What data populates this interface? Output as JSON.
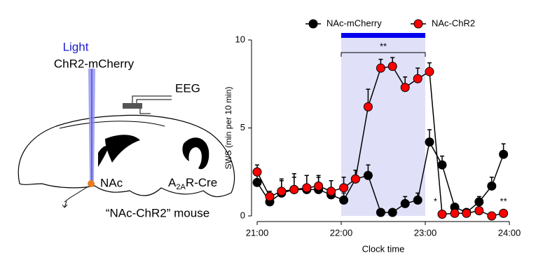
{
  "diagram": {
    "light": "Light",
    "construct": "ChR2-mCherry",
    "eeg": "EEG",
    "region": "NAc",
    "cre": [
      "A",
      "2A",
      "R-Cre"
    ],
    "mouse": "“NAc-ChR2” mouse"
  },
  "chart_data": {
    "type": "line",
    "x_label": "Clock time",
    "y_label": "SWS (min per 10 min)",
    "x": [
      21.0,
      21.15,
      21.29,
      21.44,
      21.59,
      21.73,
      21.88,
      22.03,
      22.17,
      22.32,
      22.47,
      22.61,
      22.76,
      22.91,
      23.05,
      23.2,
      23.35,
      23.49,
      23.64,
      23.79,
      23.93
    ],
    "series": [
      {
        "name": "NAc-mCherry",
        "color": "#000000",
        "values": [
          1.9,
          0.8,
          1.3,
          1.5,
          1.5,
          1.5,
          1.2,
          0.9,
          2.1,
          2.3,
          0.2,
          0.2,
          0.7,
          0.9,
          4.2,
          2.9,
          0.5,
          0.2,
          0.8,
          1.7,
          3.5
        ],
        "errors": [
          0.4,
          0.3,
          0.8,
          0.9,
          0.8,
          0.7,
          0.8,
          0.4,
          0.5,
          0.6,
          0.1,
          0.1,
          0.4,
          0.4,
          0.7,
          0.5,
          0.2,
          0.1,
          0.3,
          0.5,
          0.6
        ]
      },
      {
        "name": "NAc-ChR2",
        "color": "#ff0000",
        "values": [
          2.5,
          1.1,
          1.4,
          1.5,
          1.6,
          1.7,
          1.4,
          1.6,
          2.1,
          6.2,
          8.4,
          8.5,
          7.3,
          7.8,
          8.2,
          0.1,
          0.15,
          0.15,
          0.3,
          0.0,
          0.15
        ],
        "errors": [
          0.4,
          0.3,
          0.6,
          0.7,
          0.7,
          0.6,
          0.6,
          0.6,
          0.5,
          1.0,
          0.5,
          0.5,
          0.6,
          0.6,
          0.5,
          0.1,
          0.1,
          0.1,
          0.2,
          0.1,
          0.1
        ]
      }
    ],
    "stim_window": [
      22,
      23
    ],
    "stim_color": "#0000ee",
    "shade_color": "#e0e0f8",
    "xlim": [
      21,
      24
    ],
    "xticks": [
      {
        "value": 21,
        "label": "21:00"
      },
      {
        "value": 22,
        "label": "22:00"
      },
      {
        "value": 23,
        "label": "23:00"
      },
      {
        "value": 24,
        "label": "24:00"
      }
    ],
    "ylim": [
      0,
      10
    ],
    "yticks": [
      0,
      5,
      10
    ],
    "annotations": [
      {
        "text": "**",
        "x": 22.5,
        "y": 9.6
      },
      {
        "text": "*",
        "x": 23.12,
        "y": 0.8
      },
      {
        "text": "**",
        "x": 23.93,
        "y": 0.8
      }
    ],
    "legend": "top"
  }
}
